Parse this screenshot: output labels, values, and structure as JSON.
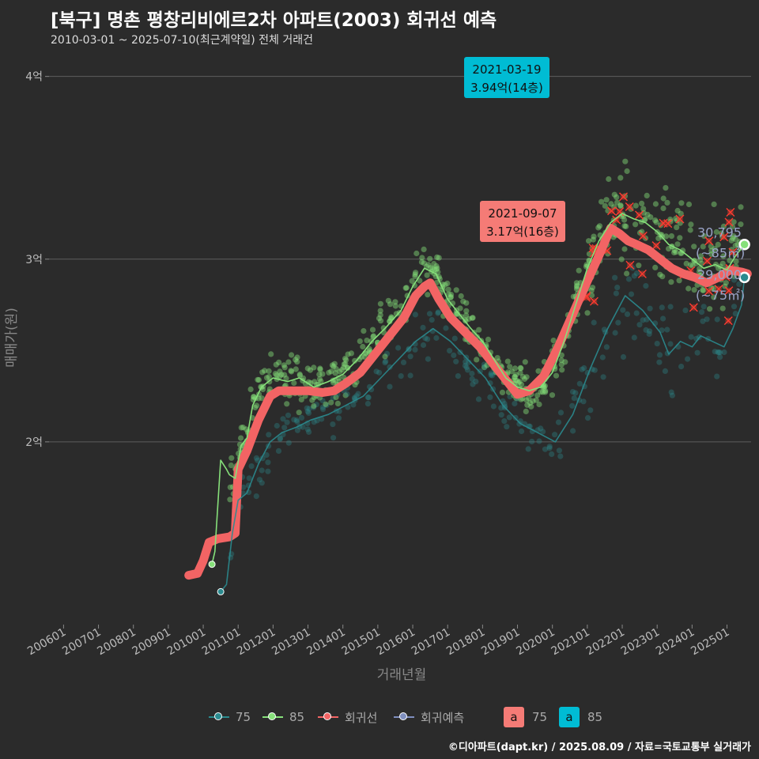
{
  "title": "[북구] 명촌 평창리비에르2차 아파트(2003) 회귀선 예측",
  "subtitle": "2010-03-01 ~ 2025-07-10(최근계약일) 전체 거래건",
  "caption": "©디아파트(dapt.kr) / 2025.08.09 / 자료=국토교통부 실거래가",
  "colors": {
    "background": "#2b2b2b",
    "s75": "#2a8b8f",
    "s85": "#86e07a",
    "regression": "#f26464",
    "prediction": "#7f8fbf",
    "highlight85": "#00bcd4",
    "highlightRecent": "#f57b76"
  },
  "legend": {
    "items": [
      {
        "label": "75",
        "icon": "line-dot-icon"
      },
      {
        "label": "85",
        "icon": "line-dot-icon"
      },
      {
        "label": "회귀선",
        "icon": "line-dot-icon"
      },
      {
        "label": "회귀예측",
        "icon": "line-dot-icon"
      }
    ],
    "boxes": [
      {
        "letter": "a",
        "label": "75"
      },
      {
        "letter": "a",
        "label": "85"
      }
    ]
  },
  "chart_data": {
    "type": "line",
    "xlabel": "거래년월",
    "ylabel": "매매가(원)",
    "x_ticks": [
      "200601",
      "200701",
      "200801",
      "200901",
      "201001",
      "201101",
      "201201",
      "201301",
      "201401",
      "201501",
      "201601",
      "201701",
      "201801",
      "201901",
      "202001",
      "202101",
      "202201",
      "202301",
      "202401",
      "202501"
    ],
    "y_ticks": [
      {
        "value": 2.0,
        "label": "2억"
      },
      {
        "value": 3.0,
        "label": "3억"
      },
      {
        "value": 4.0,
        "label": "4억"
      }
    ],
    "ylim": [
      1.0,
      4.15
    ],
    "xlim": [
      "2005-08",
      "2025-12"
    ],
    "grid": "horizontal",
    "unit": "억",
    "series": [
      {
        "name": "회귀선",
        "kind": "regression",
        "x": [
          "2009-08",
          "2009-11",
          "2010-01",
          "2010-03",
          "2010-06",
          "2010-10",
          "2010-12",
          "2011-01",
          "2011-04",
          "2011-08",
          "2011-12",
          "2012-03",
          "2012-08",
          "2013-01",
          "2013-06",
          "2013-10",
          "2014-02",
          "2014-07",
          "2014-12",
          "2015-05",
          "2015-10",
          "2016-02",
          "2016-05",
          "2016-07",
          "2016-10",
          "2017-02",
          "2017-07",
          "2017-12",
          "2018-05",
          "2018-10",
          "2019-01",
          "2019-05",
          "2019-10",
          "2020-03",
          "2020-08",
          "2021-01",
          "2021-05",
          "2021-09",
          "2021-12",
          "2022-03",
          "2022-06",
          "2022-10",
          "2023-02",
          "2023-06",
          "2023-10",
          "2024-02",
          "2024-06",
          "2024-10",
          "2025-02",
          "2025-06",
          "2025-08"
        ],
        "values": [
          1.27,
          1.28,
          1.35,
          1.45,
          1.47,
          1.48,
          1.5,
          1.85,
          1.95,
          2.12,
          2.25,
          2.28,
          2.28,
          2.28,
          2.27,
          2.28,
          2.32,
          2.38,
          2.48,
          2.58,
          2.68,
          2.8,
          2.85,
          2.87,
          2.78,
          2.68,
          2.6,
          2.52,
          2.42,
          2.32,
          2.26,
          2.28,
          2.36,
          2.52,
          2.7,
          2.88,
          3.02,
          3.17,
          3.14,
          3.1,
          3.08,
          3.05,
          3.0,
          2.95,
          2.92,
          2.9,
          2.87,
          2.9,
          2.94,
          2.93,
          2.92
        ]
      },
      {
        "name": "85",
        "kind": "size-85",
        "x": [
          "2010-04",
          "2010-05",
          "2010-07",
          "2010-09",
          "2010-10",
          "2010-12",
          "2011-02",
          "2011-04",
          "2011-06",
          "2011-09",
          "2012-01",
          "2012-06",
          "2012-10",
          "2013-03",
          "2013-08",
          "2014-01",
          "2014-06",
          "2014-11",
          "2015-04",
          "2015-09",
          "2016-01",
          "2016-05",
          "2016-09",
          "2017-01",
          "2017-05",
          "2017-09",
          "2018-01",
          "2018-05",
          "2018-09",
          "2019-01",
          "2019-05",
          "2019-09",
          "2020-01",
          "2020-05",
          "2020-09",
          "2021-01",
          "2021-05",
          "2021-09",
          "2022-01",
          "2022-05",
          "2022-09",
          "2023-01",
          "2023-05",
          "2023-09",
          "2024-01",
          "2024-05",
          "2024-09",
          "2025-01",
          "2025-04",
          "2025-07"
        ],
        "values": [
          1.33,
          1.4,
          1.9,
          1.85,
          1.82,
          1.8,
          1.98,
          2.02,
          2.2,
          2.3,
          2.35,
          2.33,
          2.35,
          2.3,
          2.33,
          2.37,
          2.45,
          2.55,
          2.63,
          2.72,
          2.85,
          2.95,
          2.92,
          2.78,
          2.7,
          2.62,
          2.55,
          2.45,
          2.35,
          2.3,
          2.28,
          2.3,
          2.38,
          2.55,
          2.75,
          2.95,
          3.1,
          3.2,
          3.25,
          3.22,
          3.2,
          3.15,
          3.08,
          3.05,
          3.0,
          2.95,
          2.97,
          2.94,
          3.02,
          3.08
        ]
      },
      {
        "name": "75",
        "kind": "size-75",
        "x": [
          "2010-07",
          "2010-09",
          "2010-11",
          "2011-01",
          "2011-04",
          "2011-08",
          "2011-12",
          "2012-04",
          "2012-09",
          "2013-02",
          "2013-08",
          "2014-02",
          "2014-08",
          "2015-02",
          "2015-08",
          "2016-02",
          "2016-08",
          "2017-02",
          "2017-08",
          "2018-02",
          "2018-08",
          "2019-02",
          "2019-08",
          "2020-02",
          "2020-08",
          "2021-02",
          "2021-08",
          "2022-02",
          "2022-08",
          "2023-02",
          "2023-05",
          "2023-09",
          "2024-01",
          "2024-04",
          "2024-08",
          "2024-12",
          "2025-03",
          "2025-06",
          "2025-07"
        ],
        "values": [
          1.18,
          1.22,
          1.5,
          1.68,
          1.72,
          1.88,
          2.0,
          2.05,
          2.08,
          2.12,
          2.15,
          2.2,
          2.25,
          2.35,
          2.45,
          2.55,
          2.62,
          2.55,
          2.45,
          2.35,
          2.2,
          2.1,
          2.05,
          2.0,
          2.15,
          2.4,
          2.62,
          2.8,
          2.72,
          2.6,
          2.48,
          2.55,
          2.52,
          2.58,
          2.55,
          2.52,
          2.62,
          2.75,
          2.9
        ]
      }
    ],
    "end_labels": [
      {
        "series": "85",
        "value": "30,795",
        "note": "(~85㎡)",
        "y": 3.08
      },
      {
        "series": "75",
        "value": "29,000",
        "note": "(~75㎡)",
        "y": 2.9
      }
    ],
    "annotations": [
      {
        "date": "2021-03-19",
        "text": "3.94억(14층)",
        "y": 3.94,
        "style": "85"
      },
      {
        "date": "2021-09-07",
        "text": "3.17억(16층)",
        "y": 3.17,
        "style": "recent"
      }
    ]
  }
}
